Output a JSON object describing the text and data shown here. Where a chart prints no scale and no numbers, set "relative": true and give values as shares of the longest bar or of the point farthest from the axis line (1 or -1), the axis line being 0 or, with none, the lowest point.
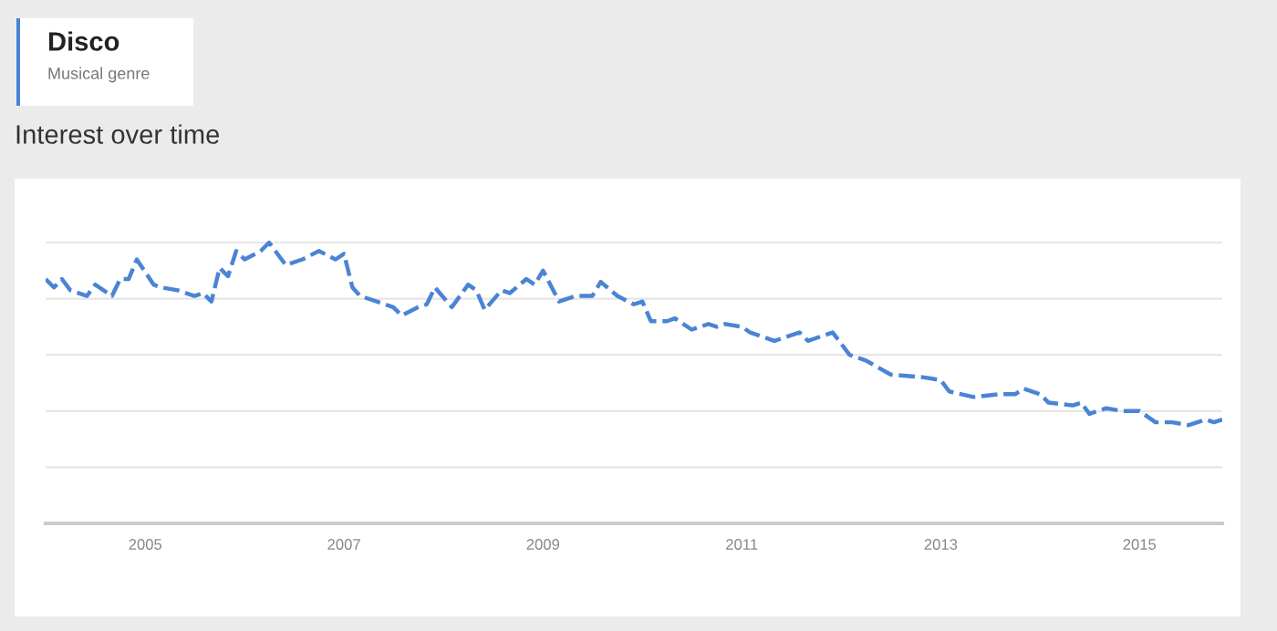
{
  "chart_data": {
    "type": "line",
    "title": "Disco",
    "subtitle": "Musical genre",
    "annotations": [
      "Interest over time"
    ],
    "relative": true,
    "line_style": "dashed",
    "marker": "none",
    "grid": "y",
    "legend": false,
    "xlim": [
      "2004-01",
      "2015-11"
    ],
    "xticks": [
      {
        "value": "2005-01",
        "label": "2005"
      },
      {
        "value": "2007-01",
        "label": "2007"
      },
      {
        "value": "2009-01",
        "label": "2009"
      },
      {
        "value": "2011-01",
        "label": "2011"
      },
      {
        "value": "2013-01",
        "label": "2013"
      },
      {
        "value": "2015-01",
        "label": "2015"
      }
    ],
    "series": [
      {
        "color": "#4a84d4",
        "x": [
          "2004-01",
          "2004-02",
          "2004-03",
          "2004-04",
          "2004-06",
          "2004-07",
          "2004-09",
          "2004-10",
          "2004-11",
          "2004-12",
          "2005-02",
          "2005-03",
          "2005-05",
          "2005-07",
          "2005-08",
          "2005-09",
          "2005-10",
          "2005-11",
          "2005-12",
          "2006-01",
          "2006-03",
          "2006-04",
          "2006-06",
          "2006-08",
          "2006-10",
          "2006-12",
          "2007-01",
          "2007-02",
          "2007-03",
          "2007-06",
          "2007-07",
          "2007-08",
          "2007-10",
          "2007-11",
          "2007-12",
          "2008-02",
          "2008-04",
          "2008-05",
          "2008-06",
          "2008-08",
          "2008-09",
          "2008-11",
          "2008-12",
          "2009-01",
          "2009-03",
          "2009-05",
          "2009-07",
          "2009-08",
          "2009-10",
          "2009-12",
          "2010-01",
          "2010-02",
          "2010-04",
          "2010-05",
          "2010-07",
          "2010-09",
          "2010-10",
          "2010-11",
          "2011-01",
          "2011-02",
          "2011-05",
          "2011-08",
          "2011-09",
          "2011-12",
          "2012-02",
          "2012-04",
          "2012-07",
          "2012-11",
          "2013-01",
          "2013-02",
          "2013-05",
          "2013-08",
          "2013-10",
          "2013-11",
          "2014-01",
          "2014-02",
          "2014-05",
          "2014-06",
          "2014-07",
          "2014-09",
          "2014-11",
          "2015-01",
          "2015-03",
          "2015-05",
          "2015-07",
          "2015-09",
          "2015-10",
          "2015-11"
        ],
        "values": [
          0.87,
          0.84,
          0.87,
          0.83,
          0.81,
          0.85,
          0.81,
          0.87,
          0.87,
          0.94,
          0.85,
          0.84,
          0.83,
          0.81,
          0.82,
          0.79,
          0.91,
          0.88,
          0.97,
          0.94,
          0.97,
          1,
          0.92,
          0.94,
          0.97,
          0.94,
          0.96,
          0.84,
          0.81,
          0.78,
          0.77,
          0.74,
          0.77,
          0.78,
          0.84,
          0.77,
          0.85,
          0.83,
          0.76,
          0.83,
          0.82,
          0.87,
          0.85,
          0.9,
          0.79,
          0.81,
          0.81,
          0.86,
          0.81,
          0.78,
          0.79,
          0.72,
          0.72,
          0.73,
          0.69,
          0.71,
          0.7,
          0.71,
          0.7,
          0.68,
          0.65,
          0.68,
          0.65,
          0.68,
          0.6,
          0.58,
          0.53,
          0.52,
          0.51,
          0.47,
          0.45,
          0.46,
          0.46,
          0.48,
          0.46,
          0.43,
          0.42,
          0.43,
          0.39,
          0.41,
          0.4,
          0.4,
          0.36,
          0.36,
          0.35,
          0.37,
          0.36,
          0.37
        ]
      }
    ]
  }
}
